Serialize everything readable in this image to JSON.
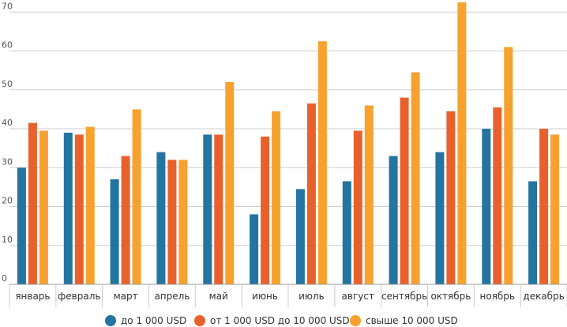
{
  "chart_data": {
    "type": "bar",
    "categories": [
      "январь",
      "февраль",
      "март",
      "апрель",
      "май",
      "июнь",
      "июль",
      "август",
      "сентябрь",
      "октябрь",
      "ноябрь",
      "декабрь"
    ],
    "series": [
      {
        "name": "до 1 000 USD",
        "color": "#2374a0",
        "values": [
          30,
          39,
          27,
          34,
          38.5,
          18,
          24.5,
          26.5,
          33,
          34,
          40,
          26.5
        ]
      },
      {
        "name": "от 1 000 USD до 10 000 USD",
        "color": "#e8612c",
        "values": [
          41.5,
          38.5,
          33,
          32,
          38.5,
          38,
          46.5,
          39.5,
          48,
          44.5,
          45.5,
          40
        ]
      },
      {
        "name": "свыше 10 000 USD",
        "color": "#f7a12f",
        "values": [
          39.5,
          40.5,
          45,
          32,
          52,
          44.5,
          62.5,
          46,
          54.5,
          72.5,
          61,
          38.5
        ]
      }
    ],
    "yticks": [
      "0",
      "10",
      "20",
      "30",
      "40",
      "50",
      "60",
      "70"
    ],
    "ylim": [
      0,
      72.5
    ],
    "grid": true,
    "legend": "bottom",
    "title": "",
    "xlabel": "",
    "ylabel": ""
  }
}
